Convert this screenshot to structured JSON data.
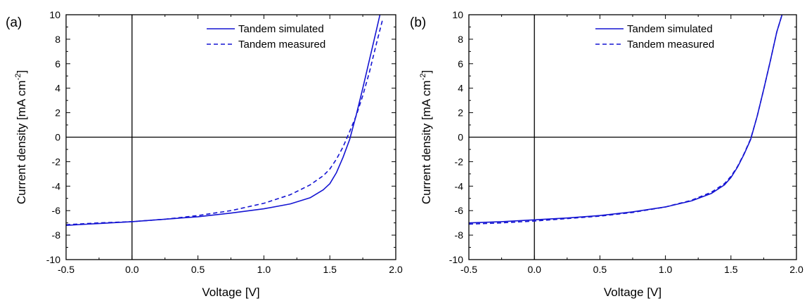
{
  "chart_data": [
    {
      "type": "line",
      "panel_label": "(a)",
      "xlabel": "Voltage [V]",
      "ylabel_main": "Current density [mA cm",
      "ylabel_sup": "-2",
      "ylabel_end": "]",
      "xlim": [
        -0.5,
        2.0
      ],
      "ylim": [
        -10,
        10
      ],
      "xticks": [
        -0.5,
        0.0,
        0.5,
        1.0,
        1.5,
        2.0
      ],
      "xtick_labels": [
        "-0.5",
        "0.0",
        "0.5",
        "1.0",
        "1.5",
        "2.0"
      ],
      "yticks": [
        -10,
        -8,
        -6,
        -4,
        -2,
        0,
        2,
        4,
        6,
        8,
        10
      ],
      "ytick_labels": [
        "-10",
        "-8",
        "-6",
        "-4",
        "-2",
        "0",
        "2",
        "4",
        "6",
        "8",
        "10"
      ],
      "legend_position": "top-right",
      "color": "#1414d2",
      "series": [
        {
          "name": "Tandem simulated",
          "style": "solid",
          "x": [
            -0.5,
            -0.25,
            0.0,
            0.25,
            0.5,
            0.75,
            1.0,
            1.2,
            1.35,
            1.45,
            1.5,
            1.55,
            1.6,
            1.65,
            1.7,
            1.75,
            1.8,
            1.85,
            1.88
          ],
          "y": [
            -7.2,
            -7.05,
            -6.9,
            -6.7,
            -6.5,
            -6.2,
            -5.85,
            -5.45,
            -4.95,
            -4.3,
            -3.8,
            -2.9,
            -1.65,
            -0.2,
            1.8,
            4.0,
            6.3,
            8.6,
            10.0
          ]
        },
        {
          "name": "Tandem measured",
          "style": "dashed",
          "x": [
            -0.5,
            -0.25,
            0.0,
            0.25,
            0.5,
            0.75,
            1.0,
            1.2,
            1.35,
            1.45,
            1.5,
            1.55,
            1.6,
            1.65,
            1.7,
            1.75,
            1.8,
            1.85,
            1.9
          ],
          "y": [
            -7.15,
            -7.0,
            -6.9,
            -6.7,
            -6.4,
            -6.0,
            -5.4,
            -4.7,
            -3.9,
            -3.15,
            -2.6,
            -1.8,
            -0.8,
            0.45,
            1.75,
            3.4,
            5.3,
            7.5,
            9.6
          ]
        }
      ]
    },
    {
      "type": "line",
      "panel_label": "(b)",
      "xlabel": "Voltage [V]",
      "ylabel_main": "Current density [mA cm",
      "ylabel_sup": "-2",
      "ylabel_end": "]",
      "xlim": [
        -0.5,
        2.0
      ],
      "ylim": [
        -10,
        10
      ],
      "xticks": [
        -0.5,
        0.0,
        0.5,
        1.0,
        1.5,
        2.0
      ],
      "xtick_labels": [
        "-0.5",
        "0.0",
        "0.5",
        "1.0",
        "1.5",
        "2.0"
      ],
      "yticks": [
        -10,
        -8,
        -6,
        -4,
        -2,
        0,
        2,
        4,
        6,
        8,
        10
      ],
      "ytick_labels": [
        "-10",
        "-8",
        "-6",
        "-4",
        "-2",
        "0",
        "2",
        "4",
        "6",
        "8",
        "10"
      ],
      "legend_position": "top-right",
      "color": "#1414d2",
      "series": [
        {
          "name": "Tandem simulated",
          "style": "solid",
          "x": [
            -0.5,
            -0.25,
            0.0,
            0.25,
            0.5,
            0.75,
            1.0,
            1.2,
            1.35,
            1.45,
            1.5,
            1.55,
            1.6,
            1.65,
            1.7,
            1.75,
            1.8,
            1.85,
            1.89
          ],
          "y": [
            -7.0,
            -6.9,
            -6.75,
            -6.6,
            -6.4,
            -6.1,
            -5.7,
            -5.2,
            -4.6,
            -3.9,
            -3.3,
            -2.45,
            -1.4,
            -0.2,
            1.7,
            3.9,
            6.2,
            8.6,
            10.0
          ]
        },
        {
          "name": "Tandem measured",
          "style": "dashed",
          "x": [
            -0.5,
            -0.25,
            0.0,
            0.25,
            0.5,
            0.75,
            1.0,
            1.2,
            1.35,
            1.45,
            1.5,
            1.55,
            1.6,
            1.65,
            1.7,
            1.75,
            1.8,
            1.85,
            1.89
          ],
          "y": [
            -7.1,
            -7.0,
            -6.85,
            -6.65,
            -6.45,
            -6.15,
            -5.7,
            -5.15,
            -4.5,
            -3.8,
            -3.2,
            -2.4,
            -1.35,
            -0.15,
            1.7,
            3.9,
            6.2,
            8.6,
            10.0
          ]
        }
      ]
    }
  ]
}
